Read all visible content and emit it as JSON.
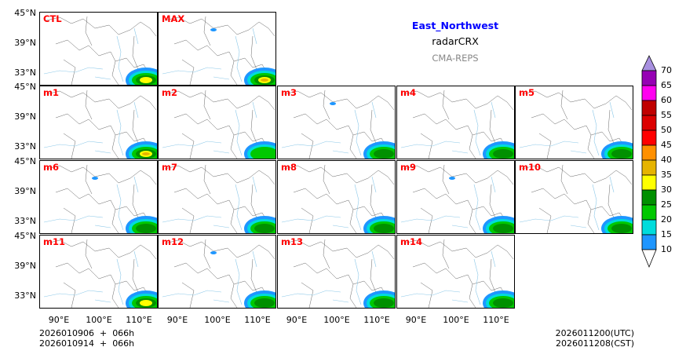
{
  "titles": {
    "region": "East_Northwest",
    "product": "radarCRX",
    "model": "CMA-REPS"
  },
  "panels": [
    {
      "label": "CTL",
      "intensity": 3
    },
    {
      "label": "MAX",
      "intensity": 4
    },
    {
      "label": "m1",
      "intensity": 4
    },
    {
      "label": "m2",
      "intensity": 1
    },
    {
      "label": "m3",
      "intensity": 2
    },
    {
      "label": "m4",
      "intensity": 2
    },
    {
      "label": "m5",
      "intensity": 2
    },
    {
      "label": "m6",
      "intensity": 2
    },
    {
      "label": "m7",
      "intensity": 2
    },
    {
      "label": "m8",
      "intensity": 2
    },
    {
      "label": "m9",
      "intensity": 2
    },
    {
      "label": "m10",
      "intensity": 2
    },
    {
      "label": "m11",
      "intensity": 3
    },
    {
      "label": "m12",
      "intensity": 2
    },
    {
      "label": "m13",
      "intensity": 2
    },
    {
      "label": "m14",
      "intensity": 2
    }
  ],
  "lat_ticks": [
    "45°N",
    "39°N",
    "33°N"
  ],
  "lon_ticks": [
    "90°E",
    "100°E",
    "110°E"
  ],
  "footer_left": [
    "2026010906  +  066h",
    "2026010914  +  066h"
  ],
  "footer_right": [
    "2026011200(UTC)",
    "2026011208(CST)"
  ],
  "colorbar": {
    "ticks": [
      "10",
      "15",
      "20",
      "25",
      "30",
      "35",
      "40",
      "45",
      "50",
      "55",
      "60",
      "65",
      "70"
    ],
    "colors": [
      "#1e96ff",
      "#00dcdc",
      "#00c800",
      "#009000",
      "#ffff00",
      "#e6b400",
      "#ff9000",
      "#ff0000",
      "#dc0000",
      "#c00000",
      "#ff00f0",
      "#9600b4"
    ],
    "over_color": "#a890e0",
    "under_color": "#ffffff"
  }
}
